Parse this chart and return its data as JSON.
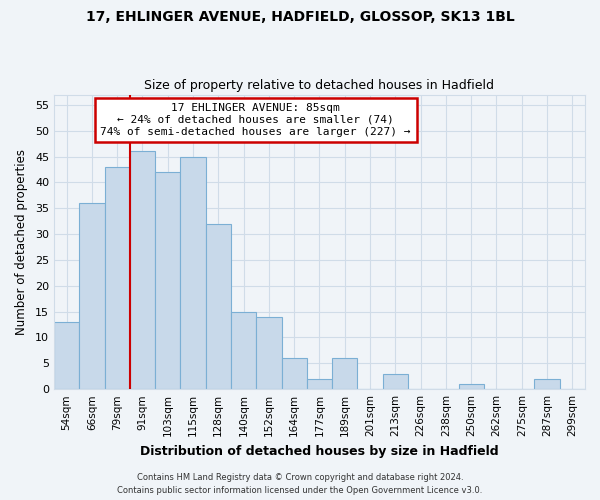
{
  "title1": "17, EHLINGER AVENUE, HADFIELD, GLOSSOP, SK13 1BL",
  "title2": "Size of property relative to detached houses in Hadfield",
  "xlabel": "Distribution of detached houses by size in Hadfield",
  "ylabel": "Number of detached properties",
  "bar_labels": [
    "54sqm",
    "66sqm",
    "79sqm",
    "91sqm",
    "103sqm",
    "115sqm",
    "128sqm",
    "140sqm",
    "152sqm",
    "164sqm",
    "177sqm",
    "189sqm",
    "201sqm",
    "213sqm",
    "226sqm",
    "238sqm",
    "250sqm",
    "262sqm",
    "275sqm",
    "287sqm",
    "299sqm"
  ],
  "bar_values": [
    13,
    36,
    43,
    46,
    42,
    45,
    32,
    15,
    14,
    6,
    2,
    6,
    0,
    3,
    0,
    0,
    1,
    0,
    0,
    2,
    0
  ],
  "bar_color": "#c8d9ea",
  "bar_edge_color": "#7bafd4",
  "annotation_title": "17 EHLINGER AVENUE: 85sqm",
  "annotation_line1": "← 24% of detached houses are smaller (74)",
  "annotation_line2": "74% of semi-detached houses are larger (227) →",
  "annotation_box_color": "#ffffff",
  "annotation_box_edge": "#cc0000",
  "vline_color": "#cc0000",
  "ylim": [
    0,
    57
  ],
  "yticks": [
    0,
    5,
    10,
    15,
    20,
    25,
    30,
    35,
    40,
    45,
    50,
    55
  ],
  "footer1": "Contains HM Land Registry data © Crown copyright and database right 2024.",
  "footer2": "Contains public sector information licensed under the Open Government Licence v3.0.",
  "bg_color": "#f0f4f8",
  "grid_color": "#d0dce8",
  "vline_x_index": 2
}
